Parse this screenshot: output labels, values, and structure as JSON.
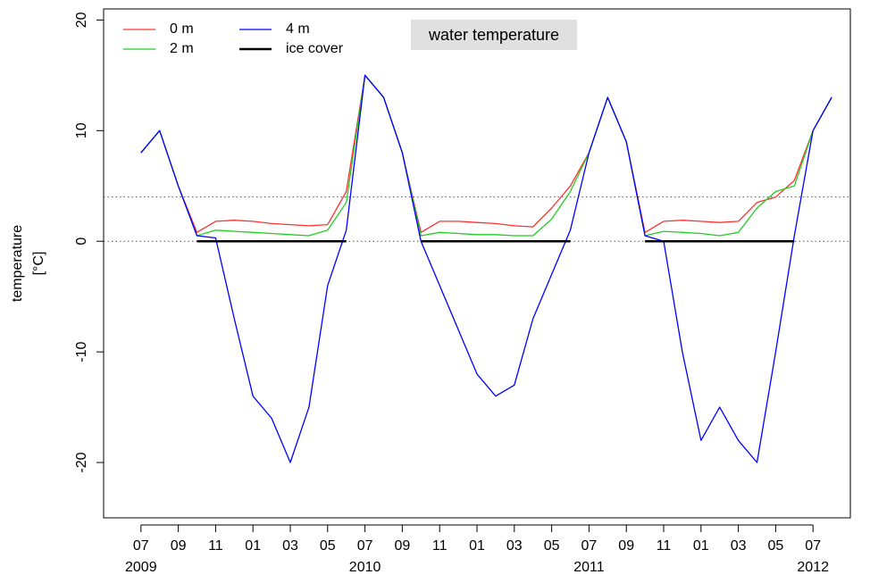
{
  "chart_data": {
    "type": "line",
    "title": "water temperature",
    "ylabel": [
      "temperature",
      "[°C]"
    ],
    "x": [
      "2009-07",
      "2009-08",
      "2009-09",
      "2009-10",
      "2009-11",
      "2009-12",
      "2010-01",
      "2010-02",
      "2010-03",
      "2010-04",
      "2010-05",
      "2010-06",
      "2010-07",
      "2010-08",
      "2010-09",
      "2010-10",
      "2010-11",
      "2010-12",
      "2011-01",
      "2011-02",
      "2011-03",
      "2011-04",
      "2011-05",
      "2011-06",
      "2011-07",
      "2011-08",
      "2011-09",
      "2011-10",
      "2011-11",
      "2011-12",
      "2012-01",
      "2012-02",
      "2012-03",
      "2012-04",
      "2012-05",
      "2012-06",
      "2012-07",
      "2012-08"
    ],
    "series": [
      {
        "name": "0 m",
        "color": "#ff3030",
        "values": [
          8,
          10,
          5,
          0.8,
          1.8,
          1.9,
          1.8,
          1.6,
          1.5,
          1.4,
          1.5,
          4.5,
          15,
          13,
          8,
          0.8,
          1.8,
          1.8,
          1.7,
          1.6,
          1.4,
          1.3,
          3,
          5,
          8,
          13,
          9,
          0.8,
          1.8,
          1.9,
          1.8,
          1.7,
          1.8,
          3.5,
          4,
          5.5,
          10,
          13
        ]
      },
      {
        "name": "2 m",
        "color": "#22cc22",
        "values": [
          8,
          10,
          5,
          0.5,
          1.0,
          0.9,
          0.8,
          0.7,
          0.6,
          0.5,
          1.0,
          3.5,
          15,
          13,
          8,
          0.5,
          0.8,
          0.7,
          0.6,
          0.6,
          0.5,
          0.5,
          2,
          4.5,
          8,
          13,
          9,
          0.5,
          0.9,
          0.8,
          0.7,
          0.5,
          0.8,
          3,
          4.5,
          5,
          10,
          13
        ]
      },
      {
        "name": "4 m",
        "color": "#0000ff",
        "values": [
          8,
          10,
          5,
          0.5,
          0.3,
          -7,
          -14,
          -16,
          -20,
          -15,
          -4,
          1,
          15,
          13,
          8,
          0,
          -4,
          -8,
          -12,
          -14,
          -13,
          -7,
          -3,
          1,
          8,
          13,
          9,
          0.5,
          0,
          -10,
          -18,
          -15,
          -18,
          -20,
          -10,
          0.5,
          10,
          13
        ]
      },
      {
        "name": "ice cover",
        "color": "#000000",
        "values": [
          null,
          null,
          null,
          0,
          0,
          0,
          0,
          0,
          0,
          0,
          0,
          0,
          null,
          null,
          null,
          0,
          0,
          0,
          0,
          0,
          0,
          0,
          0,
          0,
          null,
          null,
          null,
          0,
          0,
          0,
          0,
          0,
          0,
          0,
          0,
          0,
          null,
          null
        ]
      }
    ],
    "xlim": [
      "2009-05",
      "2012-09"
    ],
    "xticks": [
      {
        "value": "2009-07",
        "label": "07"
      },
      {
        "value": "2009-09",
        "label": "09"
      },
      {
        "value": "2009-11",
        "label": "11"
      },
      {
        "value": "2010-01",
        "label": "01"
      },
      {
        "value": "2010-03",
        "label": "03"
      },
      {
        "value": "2010-05",
        "label": "05"
      },
      {
        "value": "2010-07",
        "label": "07"
      },
      {
        "value": "2010-09",
        "label": "09"
      },
      {
        "value": "2010-11",
        "label": "11"
      },
      {
        "value": "2011-01",
        "label": "01"
      },
      {
        "value": "2011-03",
        "label": "03"
      },
      {
        "value": "2011-05",
        "label": "05"
      },
      {
        "value": "2011-07",
        "label": "07"
      },
      {
        "value": "2011-09",
        "label": "09"
      },
      {
        "value": "2011-11",
        "label": "11"
      },
      {
        "value": "2012-01",
        "label": "01"
      },
      {
        "value": "2012-03",
        "label": "03"
      },
      {
        "value": "2012-05",
        "label": "05"
      },
      {
        "value": "2012-07",
        "label": "07"
      }
    ],
    "year_labels": [
      {
        "value": "2009-07",
        "label": "2009"
      },
      {
        "value": "2010-07",
        "label": "2010"
      },
      {
        "value": "2011-07",
        "label": "2011"
      },
      {
        "value": "2012-07",
        "label": "2012"
      }
    ],
    "ylim": [
      -25,
      21
    ],
    "yticks": [
      -20,
      -10,
      0,
      10,
      20
    ],
    "hlines": [
      0,
      4
    ],
    "grid": false
  }
}
